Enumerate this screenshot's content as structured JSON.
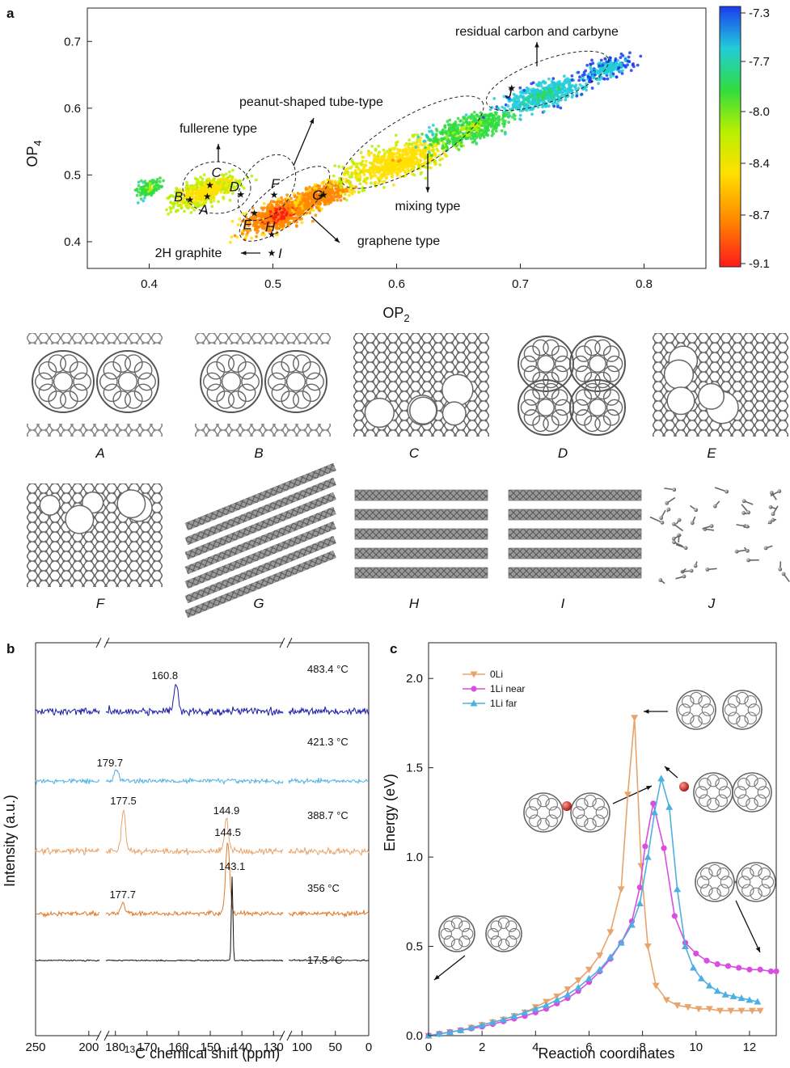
{
  "panels": {
    "a": "a",
    "b": "b",
    "c": "c"
  },
  "chart_data": [
    {
      "panel": "a",
      "type": "scatter",
      "xlabel": "OP",
      "xlabel_sub": "2",
      "ylabel": "OP",
      "ylabel_sub": "4",
      "xlim": [
        0.35,
        0.85
      ],
      "ylim": [
        0.36,
        0.75
      ],
      "xticks": [
        0.4,
        0.5,
        0.6,
        0.7,
        0.8
      ],
      "xtick_labels": [
        "0.4",
        "0.5",
        "0.6",
        "0.7",
        "0.8"
      ],
      "yticks": [
        0.4,
        0.5,
        0.6,
        0.7
      ],
      "ytick_labels": [
        "0.4",
        "0.5",
        "0.6",
        "0.7"
      ],
      "colorbar": {
        "ticks": [
          -7.3,
          -7.7,
          -8.0,
          -8.4,
          -8.7,
          -9.1
        ],
        "tick_labels": [
          "-7.3",
          "-7.7",
          "-8.0",
          "-8.4",
          "-8.7",
          "-9.1"
        ],
        "range": [
          -9.1,
          -7.3
        ],
        "colors": [
          "#ff1a1a",
          "#ff8800",
          "#ffe000",
          "#b8f000",
          "#30dc40",
          "#22ccd8",
          "#1a3cf0"
        ]
      },
      "points": [
        {
          "label": "A",
          "x": 0.447,
          "y": 0.468
        },
        {
          "label": "B",
          "x": 0.433,
          "y": 0.463
        },
        {
          "label": "C",
          "x": 0.449,
          "y": 0.485
        },
        {
          "label": "D",
          "x": 0.474,
          "y": 0.471
        },
        {
          "label": "E",
          "x": 0.485,
          "y": 0.443
        },
        {
          "label": "F",
          "x": 0.501,
          "y": 0.47
        },
        {
          "label": "G",
          "x": 0.541,
          "y": 0.47
        },
        {
          "label": "H",
          "x": 0.499,
          "y": 0.411
        },
        {
          "label": "I",
          "x": 0.499,
          "y": 0.383
        },
        {
          "label": "J",
          "x": 0.693,
          "y": 0.63
        }
      ],
      "annotations": [
        {
          "text": "fullerene type"
        },
        {
          "text": "peanut-shaped tube-type"
        },
        {
          "text": "residual carbon and carbyne"
        },
        {
          "text": "mixing type"
        },
        {
          "text": "graphene type"
        },
        {
          "text": "2H graphite"
        }
      ]
    },
    {
      "panel": "b",
      "type": "line",
      "xlabel": "C chemical shift (ppm)",
      "xlabel_sup": "13",
      "ylabel": "Intensity (a.u.)",
      "xlim": [
        250,
        0
      ],
      "xticks": [
        250,
        200,
        180,
        170,
        160,
        150,
        140,
        130,
        100,
        50,
        0
      ],
      "xtick_labels": [
        "250",
        "200",
        "180",
        "170",
        "160",
        "150",
        "140",
        "130",
        "100",
        "50",
        "0"
      ],
      "series": [
        {
          "name": "483.4 °C",
          "color": "#1a1aa8",
          "peaks": [
            {
              "x": 160.8,
              "label": "160.8"
            }
          ]
        },
        {
          "name": "421.3 °C",
          "color": "#4fb0e0",
          "peaks": [
            {
              "x": 179.7,
              "label": "179.7"
            }
          ]
        },
        {
          "name": "388.7 °C",
          "color": "#e8a46a",
          "peaks": [
            {
              "x": 177.5,
              "label": "177.5"
            },
            {
              "x": 144.9,
              "label": "144.9"
            }
          ]
        },
        {
          "name": "356 °C",
          "color": "#e07b2c",
          "peaks": [
            {
              "x": 177.7,
              "label": "177.7"
            },
            {
              "x": 144.5,
              "label": "144.5"
            }
          ]
        },
        {
          "name": "17.5 °C",
          "color": "#111111",
          "peaks": [
            {
              "x": 143.1,
              "label": "143.1"
            }
          ]
        }
      ]
    },
    {
      "panel": "c",
      "type": "line",
      "xlabel": "Reaction coordinates",
      "ylabel": "Energy (eV)",
      "xlim": [
        0,
        13
      ],
      "ylim": [
        0,
        2.2
      ],
      "xticks": [
        0,
        2,
        4,
        6,
        8,
        10,
        12
      ],
      "xtick_labels": [
        "0",
        "2",
        "4",
        "6",
        "8",
        "10",
        "12"
      ],
      "yticks": [
        0,
        0.5,
        1.0,
        1.5,
        2.0
      ],
      "ytick_labels": [
        "0.0",
        "0.5",
        "1.0",
        "1.5",
        "2.0"
      ],
      "series": [
        {
          "name": "0Li",
          "color": "#e8a46a",
          "marker": "triangle-down",
          "x": [
            0,
            0.4,
            0.8,
            1.2,
            1.6,
            2.0,
            2.4,
            2.8,
            3.2,
            3.6,
            4.0,
            4.4,
            4.8,
            5.2,
            5.6,
            6.0,
            6.4,
            6.8,
            7.2,
            7.45,
            7.7,
            7.95,
            8.2,
            8.5,
            8.9,
            9.3,
            9.7,
            10.1,
            10.5,
            10.9,
            11.3,
            11.7,
            12.1,
            12.4
          ],
          "y": [
            0,
            0.01,
            0.02,
            0.03,
            0.045,
            0.06,
            0.075,
            0.09,
            0.11,
            0.13,
            0.16,
            0.19,
            0.22,
            0.26,
            0.31,
            0.37,
            0.45,
            0.58,
            0.82,
            1.35,
            1.78,
            0.95,
            0.5,
            0.28,
            0.2,
            0.17,
            0.16,
            0.15,
            0.15,
            0.14,
            0.14,
            0.14,
            0.14,
            0.14
          ]
        },
        {
          "name": "1Li near",
          "color": "#d84ee0",
          "marker": "circle",
          "x": [
            0,
            0.4,
            0.8,
            1.2,
            1.6,
            2.0,
            2.4,
            2.8,
            3.2,
            3.6,
            4.0,
            4.4,
            4.8,
            5.2,
            5.6,
            6.0,
            6.4,
            6.8,
            7.2,
            7.6,
            7.9,
            8.1,
            8.4,
            8.8,
            9.2,
            9.6,
            10.0,
            10.4,
            10.8,
            11.2,
            11.6,
            12.0,
            12.4,
            12.8,
            13.0
          ],
          "y": [
            0,
            0.01,
            0.02,
            0.03,
            0.04,
            0.05,
            0.065,
            0.08,
            0.095,
            0.11,
            0.13,
            0.15,
            0.18,
            0.21,
            0.25,
            0.3,
            0.36,
            0.43,
            0.52,
            0.64,
            0.83,
            1.06,
            1.3,
            1.05,
            0.67,
            0.52,
            0.46,
            0.42,
            0.4,
            0.39,
            0.38,
            0.37,
            0.37,
            0.36,
            0.36
          ]
        },
        {
          "name": "1Li far",
          "color": "#4fb0e0",
          "marker": "triangle-up",
          "x": [
            0,
            0.4,
            0.8,
            1.2,
            1.6,
            2.0,
            2.4,
            2.8,
            3.2,
            3.6,
            4.0,
            4.4,
            4.8,
            5.2,
            5.6,
            6.0,
            6.4,
            6.8,
            7.2,
            7.6,
            7.9,
            8.2,
            8.45,
            8.7,
            9.0,
            9.3,
            9.6,
            9.9,
            10.2,
            10.5,
            10.8,
            11.1,
            11.4,
            11.7,
            12.0,
            12.3
          ],
          "y": [
            0,
            0.01,
            0.02,
            0.03,
            0.045,
            0.06,
            0.075,
            0.09,
            0.11,
            0.13,
            0.15,
            0.17,
            0.2,
            0.23,
            0.27,
            0.32,
            0.37,
            0.44,
            0.52,
            0.62,
            0.74,
            1.0,
            1.25,
            1.44,
            1.28,
            0.82,
            0.5,
            0.38,
            0.32,
            0.28,
            0.25,
            0.23,
            0.22,
            0.21,
            0.2,
            0.19
          ]
        }
      ]
    }
  ],
  "structures": {
    "row1": [
      "A",
      "B",
      "C",
      "D",
      "E"
    ],
    "row2": [
      "F",
      "G",
      "H",
      "I",
      "J"
    ]
  }
}
